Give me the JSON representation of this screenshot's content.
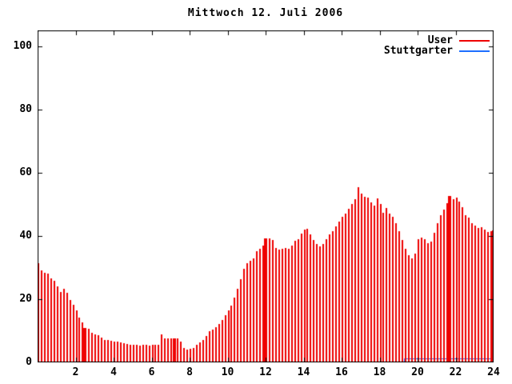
{
  "title": "Mittwoch 12. Juli 2006",
  "colors": {
    "background": "#ffffff",
    "border": "#000000",
    "text": "#000000",
    "user_red": "#ee0000",
    "stuttgarter_blue": "#1e6fff"
  },
  "legend": [
    {
      "label": "User",
      "color": "#ee0000"
    },
    {
      "label": "Stuttgarter",
      "color": "#1e6fff"
    }
  ],
  "chart_data": {
    "type": "bar",
    "title": "Mittwoch 12. Juli 2006",
    "xlabel": "",
    "ylabel": "",
    "x_unit": "hour_of_day",
    "xlim": [
      0,
      24
    ],
    "ylim": [
      0,
      105
    ],
    "xticks": [
      2,
      4,
      6,
      8,
      10,
      12,
      14,
      16,
      18,
      20,
      22,
      24
    ],
    "yticks": [
      0,
      20,
      40,
      60,
      80,
      100
    ],
    "grid": false,
    "legend_position": "top-right-inside",
    "x_start_hour": 0,
    "x_step_minutes": 10,
    "series": [
      {
        "name": "User",
        "style": "impulses",
        "color": "#ee0000",
        "values": [
          31.5,
          29.0,
          28.3,
          28.0,
          26.5,
          25.8,
          24.0,
          22.3,
          23.4,
          21.9,
          19.7,
          18.1,
          16.4,
          14.2,
          12.7,
          11.0,
          10.6,
          9.3,
          8.9,
          8.5,
          7.8,
          7.2,
          7.0,
          6.9,
          6.7,
          6.5,
          6.3,
          6.0,
          5.8,
          5.6,
          5.5,
          5.6,
          5.4,
          5.6,
          5.5,
          5.4,
          5.5,
          5.6,
          5.5,
          8.9,
          7.6,
          7.5,
          7.6,
          7.6,
          7.6,
          6.5,
          4.6,
          4.0,
          4.4,
          4.6,
          5.5,
          6.4,
          7.1,
          8.4,
          9.8,
          10.5,
          11.2,
          12.2,
          13.5,
          14.9,
          16.4,
          18.0,
          20.5,
          23.2,
          26.2,
          29.5,
          31.3,
          32.1,
          33.0,
          35.1,
          36.0,
          36.9,
          38.9,
          39.2,
          38.7,
          36.2,
          35.8,
          36.0,
          36.2,
          36.0,
          37.0,
          38.4,
          39.0,
          40.8,
          42.0,
          42.3,
          40.6,
          38.8,
          37.5,
          36.6,
          37.5,
          39.0,
          40.5,
          41.5,
          43.0,
          44.5,
          46.0,
          47.0,
          48.5,
          50.0,
          51.5,
          55.3,
          53.5,
          52.3,
          52.0,
          50.5,
          49.6,
          51.8,
          50.2,
          47.4,
          48.9,
          47.0,
          46.0,
          44.0,
          41.5,
          38.8,
          36.0,
          34.0,
          33.0,
          34.5,
          38.9,
          39.5,
          39.0,
          37.8,
          38.2,
          41.0,
          44.0,
          46.5,
          48.3,
          50.4,
          52.7,
          51.6,
          52.1,
          50.8,
          49.1,
          46.6,
          45.8,
          44.0,
          43.2,
          42.5,
          42.8,
          42.0,
          41.2,
          41.5,
          41.8
        ]
      },
      {
        "name": "Stuttgarter",
        "style": "line",
        "color": "#1e6fff",
        "segments": [
          {
            "from_hour": 19.3,
            "to_hour": 24,
            "value": 1.3
          }
        ]
      }
    ],
    "solid_spikes": [
      {
        "hour": 2.45,
        "value": 11.0
      },
      {
        "hour": 7.15,
        "value": 7.6
      },
      {
        "hour": 11.95,
        "value": 39.2
      },
      {
        "hour": 21.65,
        "value": 52.7
      }
    ]
  }
}
